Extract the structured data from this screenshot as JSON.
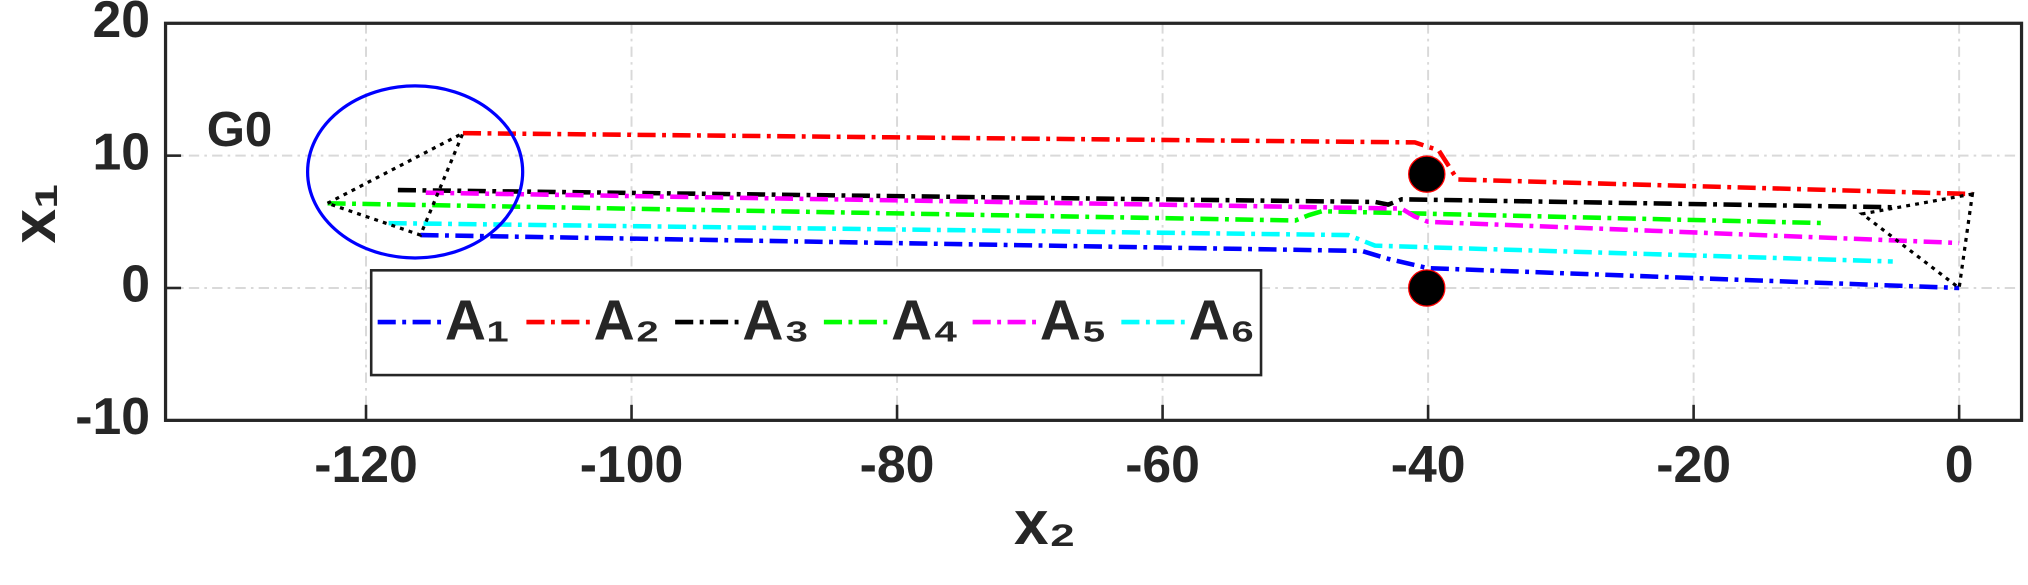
{
  "chart_data": {
    "type": "line",
    "xlabel": "x₂",
    "ylabel": "x₁",
    "xlim": [
      -135.1,
      4.7
    ],
    "ylim": [
      -10,
      20
    ],
    "xticks": [
      -120,
      -100,
      -80,
      -60,
      -40,
      -20,
      0
    ],
    "yticks": [
      -10,
      0,
      10,
      20
    ],
    "grid": true,
    "series": [
      {
        "name": "A₁",
        "color": "#0000ff",
        "x": [
          -115.9,
          -45,
          -43,
          -40,
          0
        ],
        "y": [
          4,
          2.8,
          2.2,
          1.5,
          0
        ]
      },
      {
        "name": "A₂",
        "color": "#ff0000",
        "x": [
          -112.7,
          -41,
          -39.2,
          -38.5,
          -37.8,
          1
        ],
        "y": [
          11.7,
          11,
          10.4,
          9.3,
          8.2,
          7.1
        ]
      },
      {
        "name": "A₃",
        "color": "#000000",
        "x": [
          -117.6,
          -44,
          -43,
          -42,
          -5
        ],
        "y": [
          7.4,
          6.5,
          6.3,
          6.7,
          6.1
        ]
      },
      {
        "name": "A₄",
        "color": "#00ff00",
        "x": [
          -122.9,
          -50,
          -49,
          -48,
          -10
        ],
        "y": [
          6.4,
          5.1,
          5.5,
          5.8,
          4.9
        ]
      },
      {
        "name": "A₅",
        "color": "#ff00ff",
        "x": [
          -115.5,
          -42,
          -41,
          -40,
          0
        ],
        "y": [
          7.2,
          6,
          5.4,
          5,
          3.4
        ]
      },
      {
        "name": "A₆",
        "color": "#00ffff",
        "x": [
          -118.3,
          -46,
          -45,
          -44,
          -5
        ],
        "y": [
          4.9,
          4,
          3.6,
          3.2,
          2
        ]
      }
    ],
    "points": {
      "x": [
        -40.1,
        -40.1
      ],
      "y": [
        8.6,
        0
      ],
      "color": "#000000"
    },
    "ellipse": {
      "cx": -116.3,
      "cy": 8.77,
      "rx": 8.1,
      "ry": 6.5,
      "color": "#0000ff"
    },
    "triangles": [
      {
        "x": [
          -122.9,
          -112.7,
          -115.9
        ],
        "y": [
          6.4,
          11.7,
          4
        ]
      },
      {
        "x": [
          1,
          -7.3,
          0
        ],
        "y": [
          7.1,
          5.6,
          0
        ]
      }
    ],
    "annotation": {
      "text": "G0",
      "x": -132,
      "y": 11.7
    }
  }
}
